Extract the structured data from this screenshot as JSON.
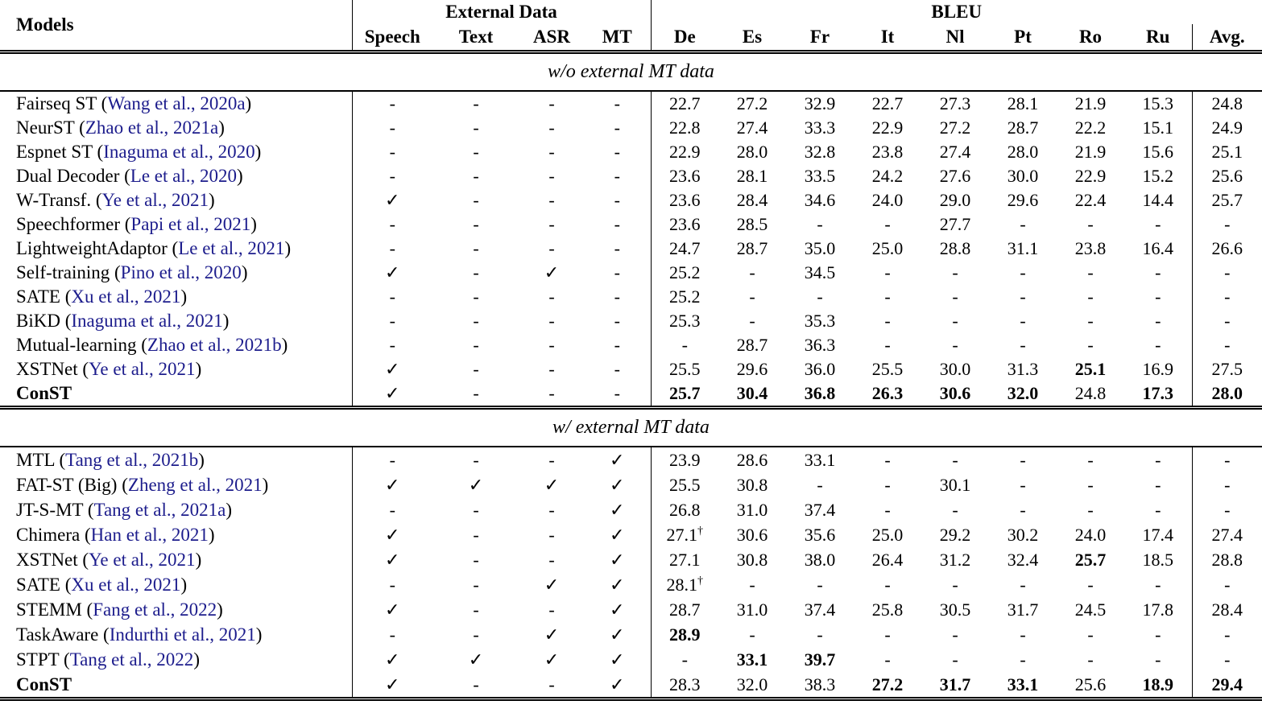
{
  "colors": {
    "citation": "#1c1c8c",
    "text": "#000000",
    "background": "#ffffff",
    "rule": "#000000"
  },
  "glyphs": {
    "check": "✓",
    "dash": "-",
    "dagger": "†",
    "paren_open": "(",
    "paren_close": ")"
  },
  "header": {
    "models": "Models",
    "external_data": "External Data",
    "bleu": "BLEU",
    "ext_cols": [
      "Speech",
      "Text",
      "ASR",
      "MT"
    ],
    "lang_cols": [
      "De",
      "Es",
      "Fr",
      "It",
      "Nl",
      "Pt",
      "Ro",
      "Ru"
    ],
    "avg": "Avg."
  },
  "sections": [
    {
      "title": "w/o external MT data",
      "rows": [
        {
          "model": "Fairseq ST",
          "cite": "Wang et al., 2020a",
          "ext": [
            "-",
            "-",
            "-",
            "-"
          ],
          "vals": [
            "22.7",
            "27.2",
            "32.9",
            "22.7",
            "27.3",
            "28.1",
            "21.9",
            "15.3",
            "24.8"
          ],
          "bold": [],
          "dagger": []
        },
        {
          "model": "NeurST",
          "cite": "Zhao et al., 2021a",
          "ext": [
            "-",
            "-",
            "-",
            "-"
          ],
          "vals": [
            "22.8",
            "27.4",
            "33.3",
            "22.9",
            "27.2",
            "28.7",
            "22.2",
            "15.1",
            "24.9"
          ],
          "bold": [],
          "dagger": []
        },
        {
          "model": "Espnet ST",
          "cite": "Inaguma et al., 2020",
          "ext": [
            "-",
            "-",
            "-",
            "-"
          ],
          "vals": [
            "22.9",
            "28.0",
            "32.8",
            "23.8",
            "27.4",
            "28.0",
            "21.9",
            "15.6",
            "25.1"
          ],
          "bold": [],
          "dagger": []
        },
        {
          "model": "Dual Decoder",
          "cite": "Le et al., 2020",
          "ext": [
            "-",
            "-",
            "-",
            "-"
          ],
          "vals": [
            "23.6",
            "28.1",
            "33.5",
            "24.2",
            "27.6",
            "30.0",
            "22.9",
            "15.2",
            "25.6"
          ],
          "bold": [],
          "dagger": []
        },
        {
          "model": "W-Transf.",
          "cite": "Ye et al., 2021",
          "ext": [
            "✓",
            "-",
            "-",
            "-"
          ],
          "vals": [
            "23.6",
            "28.4",
            "34.6",
            "24.0",
            "29.0",
            "29.6",
            "22.4",
            "14.4",
            "25.7"
          ],
          "bold": [],
          "dagger": []
        },
        {
          "model": "Speechformer",
          "cite": "Papi et al., 2021",
          "ext": [
            "-",
            "-",
            "-",
            "-"
          ],
          "vals": [
            "23.6",
            "28.5",
            "-",
            "-",
            "27.7",
            "-",
            "-",
            "-",
            "-"
          ],
          "bold": [],
          "dagger": []
        },
        {
          "model": "LightweightAdaptor",
          "cite": "Le et al., 2021",
          "ext": [
            "-",
            "-",
            "-",
            "-"
          ],
          "vals": [
            "24.7",
            "28.7",
            "35.0",
            "25.0",
            "28.8",
            "31.1",
            "23.8",
            "16.4",
            "26.6"
          ],
          "bold": [],
          "dagger": []
        },
        {
          "model": "Self-training",
          "cite": "Pino et al., 2020",
          "ext": [
            "✓",
            "-",
            "✓",
            "-"
          ],
          "vals": [
            "25.2",
            "-",
            "34.5",
            "-",
            "-",
            "-",
            "-",
            "-",
            "-"
          ],
          "bold": [],
          "dagger": []
        },
        {
          "model": "SATE",
          "cite": "Xu et al., 2021",
          "ext": [
            "-",
            "-",
            "-",
            "-"
          ],
          "vals": [
            "25.2",
            "-",
            "-",
            "-",
            "-",
            "-",
            "-",
            "-",
            "-"
          ],
          "bold": [],
          "dagger": []
        },
        {
          "model": "BiKD",
          "cite": "Inaguma et al., 2021",
          "ext": [
            "-",
            "-",
            "-",
            "-"
          ],
          "vals": [
            "25.3",
            "-",
            "35.3",
            "-",
            "-",
            "-",
            "-",
            "-",
            "-"
          ],
          "bold": [],
          "dagger": []
        },
        {
          "model": "Mutual-learning",
          "cite": "Zhao et al., 2021b",
          "ext": [
            "-",
            "-",
            "-",
            "-"
          ],
          "vals": [
            "-",
            "28.7",
            "36.3",
            "-",
            "-",
            "-",
            "-",
            "-",
            "-"
          ],
          "bold": [],
          "dagger": []
        },
        {
          "model": "XSTNet",
          "cite": "Ye et al., 2021",
          "ext": [
            "✓",
            "-",
            "-",
            "-"
          ],
          "vals": [
            "25.5",
            "29.6",
            "36.0",
            "25.5",
            "30.0",
            "31.3",
            "25.1",
            "16.9",
            "27.5"
          ],
          "bold": [
            6
          ],
          "dagger": []
        },
        {
          "model": "ConST",
          "cite": null,
          "bold_model": true,
          "ext": [
            "✓",
            "-",
            "-",
            "-"
          ],
          "vals": [
            "25.7",
            "30.4",
            "36.8",
            "26.3",
            "30.6",
            "32.0",
            "24.8",
            "17.3",
            "28.0"
          ],
          "bold": [
            0,
            1,
            2,
            3,
            4,
            5,
            7,
            8
          ],
          "dagger": []
        }
      ]
    },
    {
      "title": "w/ external MT data",
      "rows": [
        {
          "model": "MTL",
          "cite": "Tang et al., 2021b",
          "ext": [
            "-",
            "-",
            "-",
            "✓"
          ],
          "vals": [
            "23.9",
            "28.6",
            "33.1",
            "-",
            "-",
            "-",
            "-",
            "-",
            "-"
          ],
          "bold": [],
          "dagger": []
        },
        {
          "model": "FAT-ST (Big)",
          "cite": "Zheng et al., 2021",
          "ext": [
            "✓",
            "✓",
            "✓",
            "✓"
          ],
          "vals": [
            "25.5",
            "30.8",
            "-",
            "-",
            "30.1",
            "-",
            "-",
            "-",
            "-"
          ],
          "bold": [],
          "dagger": []
        },
        {
          "model": "JT-S-MT",
          "cite": "Tang et al., 2021a",
          "ext": [
            "-",
            "-",
            "-",
            "✓"
          ],
          "vals": [
            "26.8",
            "31.0",
            "37.4",
            "-",
            "-",
            "-",
            "-",
            "-",
            "-"
          ],
          "bold": [],
          "dagger": []
        },
        {
          "model": "Chimera",
          "cite": "Han et al., 2021",
          "ext": [
            "✓",
            "-",
            "-",
            "✓"
          ],
          "vals": [
            "27.1",
            "30.6",
            "35.6",
            "25.0",
            "29.2",
            "30.2",
            "24.0",
            "17.4",
            "27.4"
          ],
          "bold": [],
          "dagger": [
            0
          ]
        },
        {
          "model": "XSTNet",
          "cite": "Ye et al., 2021",
          "ext": [
            "✓",
            "-",
            "-",
            "✓"
          ],
          "vals": [
            "27.1",
            "30.8",
            "38.0",
            "26.4",
            "31.2",
            "32.4",
            "25.7",
            "18.5",
            "28.8"
          ],
          "bold": [
            6
          ],
          "dagger": []
        },
        {
          "model": "SATE",
          "cite": "Xu et al., 2021",
          "ext": [
            "-",
            "-",
            "✓",
            "✓"
          ],
          "vals": [
            "28.1",
            "-",
            "-",
            "-",
            "-",
            "-",
            "-",
            "-",
            "-"
          ],
          "bold": [],
          "dagger": [
            0
          ]
        },
        {
          "model": "STEMM",
          "cite": "Fang et al., 2022",
          "ext": [
            "✓",
            "-",
            "-",
            "✓"
          ],
          "vals": [
            "28.7",
            "31.0",
            "37.4",
            "25.8",
            "30.5",
            "31.7",
            "24.5",
            "17.8",
            "28.4"
          ],
          "bold": [],
          "dagger": []
        },
        {
          "model": "TaskAware",
          "cite": "Indurthi et al., 2021",
          "ext": [
            "-",
            "-",
            "✓",
            "✓"
          ],
          "vals": [
            "28.9",
            "-",
            "-",
            "-",
            "-",
            "-",
            "-",
            "-",
            "-"
          ],
          "bold": [
            0
          ],
          "dagger": []
        },
        {
          "model": "STPT",
          "cite": "Tang et al., 2022",
          "ext": [
            "✓",
            "✓",
            "✓",
            "✓"
          ],
          "vals": [
            "-",
            "33.1",
            "39.7",
            "-",
            "-",
            "-",
            "-",
            "-",
            "-"
          ],
          "bold": [
            1,
            2
          ],
          "dagger": []
        },
        {
          "model": "ConST",
          "cite": null,
          "bold_model": true,
          "ext": [
            "✓",
            "-",
            "-",
            "✓"
          ],
          "vals": [
            "28.3",
            "32.0",
            "38.3",
            "27.2",
            "31.7",
            "33.1",
            "25.6",
            "18.9",
            "29.4"
          ],
          "bold": [
            3,
            4,
            5,
            7,
            8
          ],
          "dagger": []
        }
      ]
    }
  ]
}
